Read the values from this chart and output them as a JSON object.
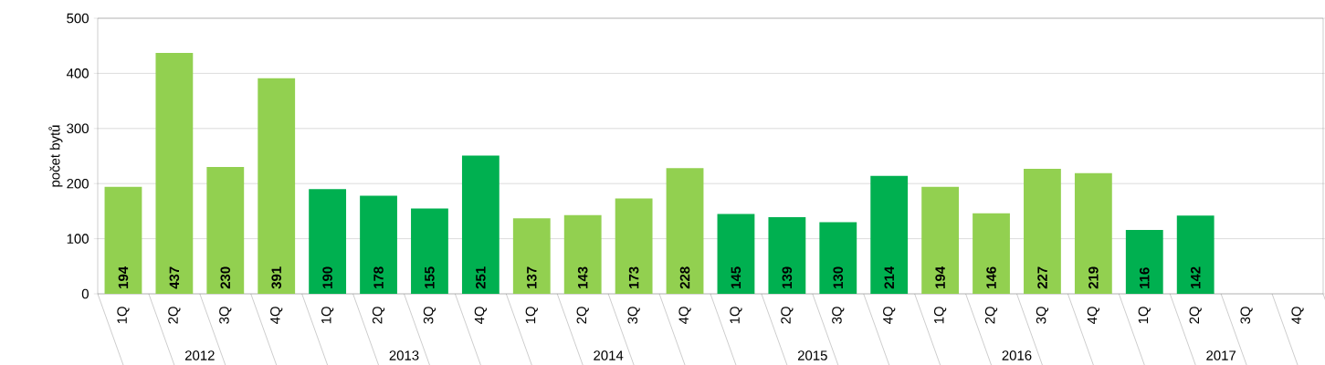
{
  "chart_data": {
    "type": "bar",
    "ylabel": "počet bytů",
    "categories": [
      "1Q",
      "2Q",
      "3Q",
      "4Q",
      "1Q",
      "2Q",
      "3Q",
      "4Q",
      "1Q",
      "2Q",
      "3Q",
      "4Q",
      "1Q",
      "2Q",
      "3Q",
      "4Q",
      "1Q",
      "2Q",
      "3Q",
      "4Q",
      "1Q",
      "2Q",
      "3Q",
      "4Q"
    ],
    "values": [
      194,
      437,
      230,
      391,
      190,
      178,
      155,
      251,
      137,
      143,
      173,
      228,
      145,
      139,
      130,
      214,
      194,
      146,
      227,
      219,
      116,
      142,
      null,
      null
    ],
    "colors": [
      "#92d050",
      "#92d050",
      "#92d050",
      "#92d050",
      "#00b050",
      "#00b050",
      "#00b050",
      "#00b050",
      "#92d050",
      "#92d050",
      "#92d050",
      "#92d050",
      "#00b050",
      "#00b050",
      "#00b050",
      "#00b050",
      "#92d050",
      "#92d050",
      "#92d050",
      "#92d050",
      "#00b050",
      "#00b050",
      "#00b050",
      "#00b050"
    ],
    "annotations": [
      "2012",
      "2013",
      "2014",
      "2015",
      "2016",
      "2017"
    ],
    "ylim": [
      0,
      500
    ],
    "yticks": [
      0,
      100,
      200,
      300,
      400,
      500
    ],
    "grid": "y",
    "data_labels": true
  }
}
